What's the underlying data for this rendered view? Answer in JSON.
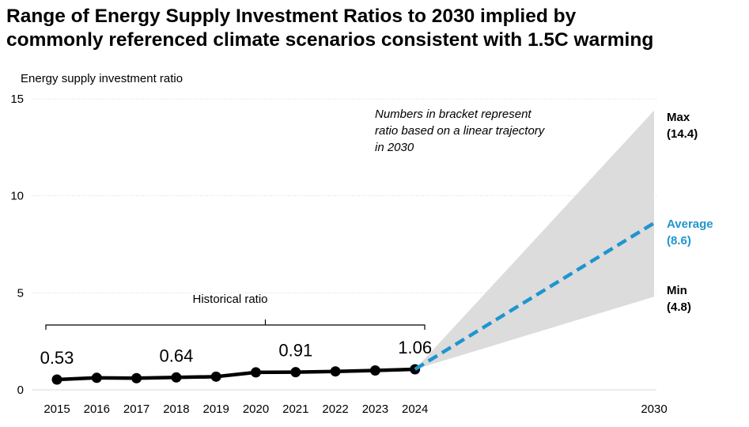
{
  "title_line1": "Range of Energy Supply Investment Ratios to 2030 implied by",
  "title_line2": "commonly referenced climate scenarios consistent with 1.5C warming",
  "colors": {
    "historical": "#000000",
    "average": "#1f95cf",
    "range_fill": "#dcdcdc",
    "grid": "#d9d9d9"
  },
  "chart_data": {
    "type": "line",
    "title": "Range of Energy Supply Investment Ratios to 2030 implied by commonly referenced climate scenarios consistent with 1.5C warming",
    "ylabel": "Energy supply investment ratio",
    "xlabel": "",
    "ylim": [
      0,
      15
    ],
    "yticks": [
      0,
      5,
      10,
      15
    ],
    "x_ticks": [
      "2015",
      "2016",
      "2017",
      "2018",
      "2019",
      "2020",
      "2021",
      "2022",
      "2023",
      "2024",
      "2030"
    ],
    "grid": "horizontal",
    "series": [
      {
        "name": "Historical ratio",
        "style": "solid-with-markers",
        "x": [
          2015,
          2016,
          2017,
          2018,
          2019,
          2020,
          2021,
          2022,
          2023,
          2024
        ],
        "values": [
          0.53,
          0.62,
          0.6,
          0.64,
          0.68,
          0.9,
          0.91,
          0.95,
          1.0,
          1.06
        ],
        "labels": {
          "2015": "0.53",
          "2018": "0.64",
          "2021": "0.91",
          "2024": "1.06"
        }
      },
      {
        "name": "Average",
        "style": "dashed",
        "x": [
          2024,
          2030
        ],
        "values": [
          1.06,
          8.6
        ]
      }
    ],
    "range": {
      "x": [
        2024,
        2030
      ],
      "start": 1.06,
      "max_end": 14.4,
      "min_end": 4.8
    },
    "range_labels": [
      {
        "line1": "Max",
        "line2": "(14.4)",
        "value": 14.4,
        "color": "#000000"
      },
      {
        "line1": "Average",
        "line2": "(8.6)",
        "value": 8.6,
        "color": "#1f95cf"
      },
      {
        "line1": "Min",
        "line2": "(4.8)",
        "value": 4.8,
        "color": "#000000"
      }
    ],
    "annotations": {
      "historical_bracket": "Historical ratio",
      "note": [
        "Numbers in bracket represent",
        "ratio based on a linear trajectory",
        "in 2030"
      ]
    }
  }
}
